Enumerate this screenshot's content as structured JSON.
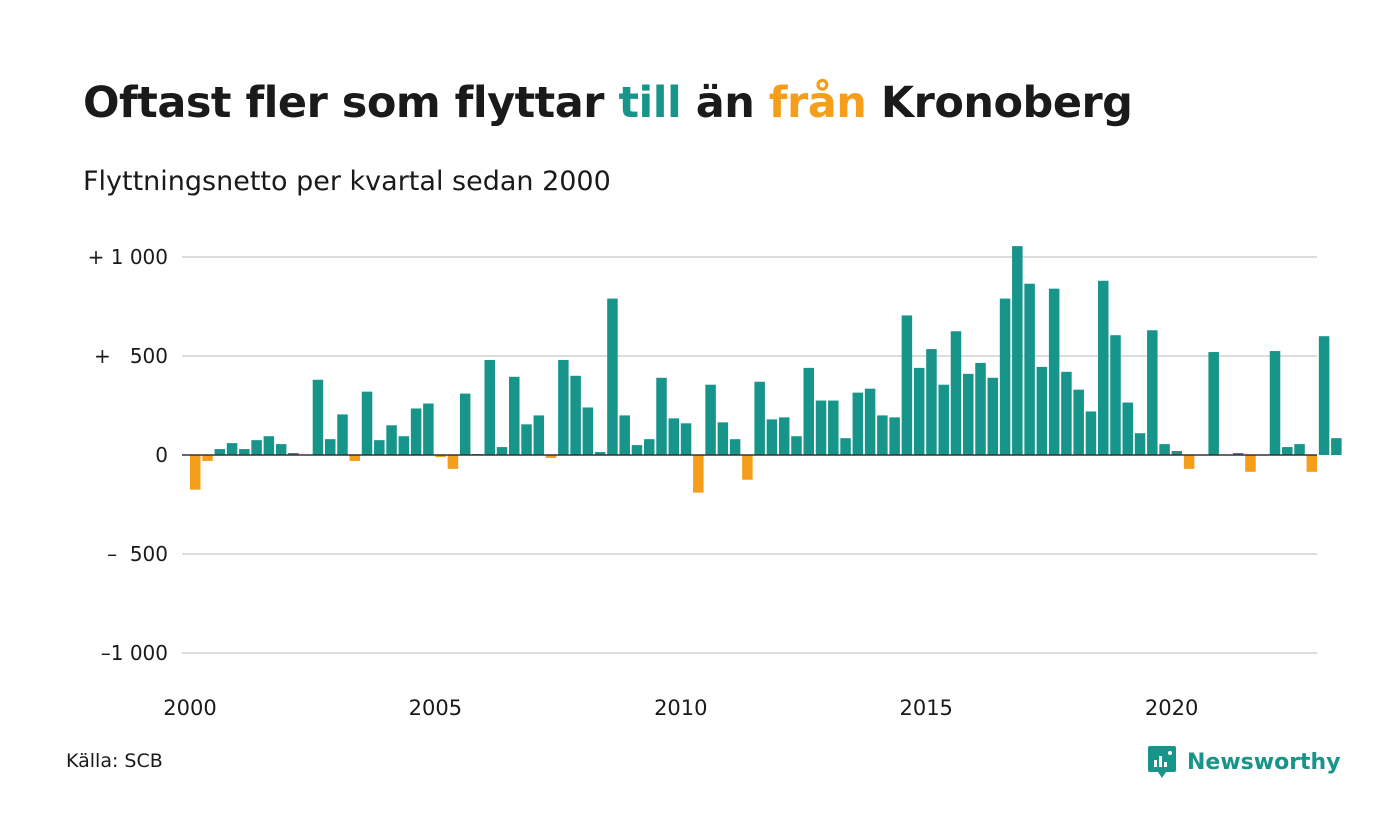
{
  "title": {
    "part1": "Oftast fler som flyttar ",
    "highlight_positive": "till",
    "part2": " än ",
    "highlight_negative": "från",
    "part3": " Kronoberg"
  },
  "subtitle": "Flyttningsnetto per kvartal sedan 2000",
  "source": "Källa: SCB",
  "brand": "Newsworthy",
  "colors": {
    "positive": "#17958a",
    "negative": "#f59e1b",
    "grid": "#dddddd",
    "zero_line": "#333333",
    "text": "#1a1a1a"
  },
  "chart_data": {
    "type": "bar",
    "x_start": "2000 Q1",
    "x_tick_labels": [
      "2000",
      "2005",
      "2010",
      "2015",
      "2020"
    ],
    "y_tick_values": [
      1000,
      500,
      0,
      -500,
      -1000
    ],
    "y_tick_labels": [
      "+ 1 000",
      "+   500",
      "0",
      "–  500",
      "–1 000"
    ],
    "ylim": [
      -1000,
      1000
    ],
    "grid": true,
    "values": [
      -175,
      -30,
      30,
      60,
      30,
      75,
      95,
      55,
      10,
      0,
      380,
      80,
      205,
      -30,
      320,
      75,
      150,
      95,
      235,
      260,
      -10,
      -70,
      310,
      5,
      480,
      40,
      395,
      155,
      200,
      -15,
      480,
      400,
      240,
      15,
      790,
      200,
      50,
      80,
      390,
      185,
      160,
      -190,
      355,
      165,
      80,
      -125,
      370,
      180,
      190,
      95,
      440,
      275,
      275,
      85,
      315,
      335,
      200,
      190,
      705,
      440,
      535,
      355,
      625,
      410,
      465,
      390,
      790,
      1055,
      865,
      445,
      840,
      420,
      330,
      220,
      880,
      605,
      265,
      110,
      630,
      55,
      20,
      -70,
      0,
      520,
      0,
      10,
      -85,
      0,
      525,
      40,
      55,
      -85,
      600,
      85
    ]
  }
}
